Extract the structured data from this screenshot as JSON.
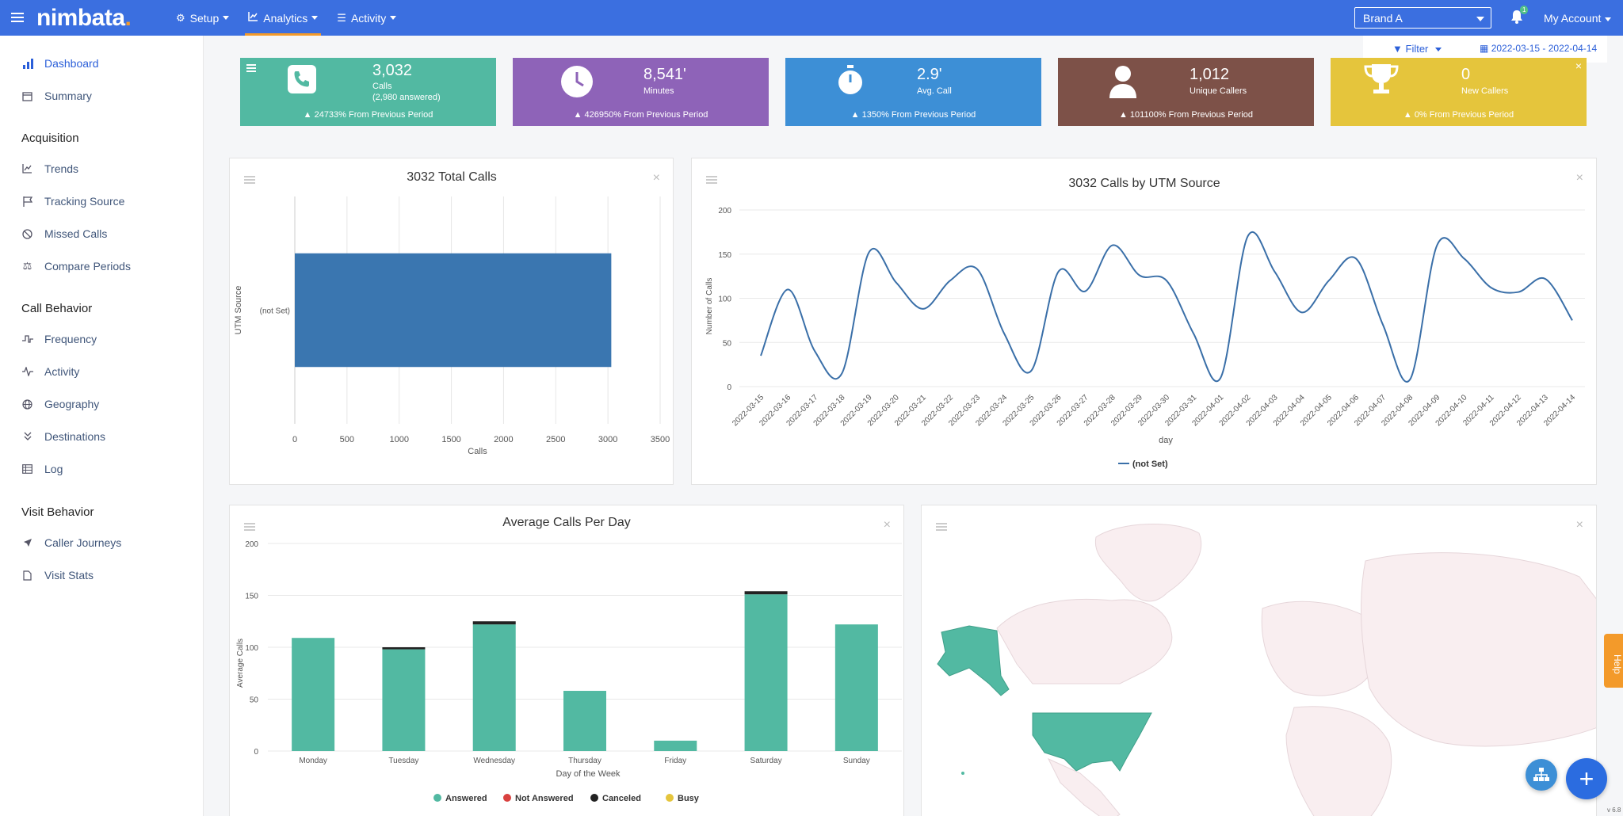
{
  "header": {
    "logo": "nimbata",
    "logo_dot": ".",
    "nav": [
      {
        "label": "Setup",
        "icon": "gear-icon"
      },
      {
        "label": "Analytics",
        "icon": "chart-icon"
      },
      {
        "label": "Activity",
        "icon": "list-icon"
      }
    ],
    "brand": "Brand A",
    "notification_count": "1",
    "account": "My Account"
  },
  "sidebar": {
    "items": [
      {
        "label": "Dashboard",
        "icon": "bar-chart-icon",
        "active": true
      },
      {
        "label": "Summary",
        "icon": "calendar-icon"
      }
    ],
    "sections": [
      {
        "title": "Acquisition",
        "items": [
          {
            "label": "Trends",
            "icon": "line-chart-icon"
          },
          {
            "label": "Tracking Source",
            "icon": "flag-icon"
          },
          {
            "label": "Missed Calls",
            "icon": "ban-icon"
          },
          {
            "label": "Compare Periods",
            "icon": "scale-icon"
          }
        ]
      },
      {
        "title": "Call Behavior",
        "items": [
          {
            "label": "Frequency",
            "icon": "pulse-icon"
          },
          {
            "label": "Activity",
            "icon": "activity-icon"
          },
          {
            "label": "Geography",
            "icon": "globe-icon"
          },
          {
            "label": "Destinations",
            "icon": "double-chevron-icon"
          },
          {
            "label": "Log",
            "icon": "table-icon"
          }
        ]
      },
      {
        "title": "Visit Behavior",
        "items": [
          {
            "label": "Caller Journeys",
            "icon": "send-icon"
          },
          {
            "label": "Visit Stats",
            "icon": "file-icon"
          }
        ]
      }
    ]
  },
  "toolbar": {
    "filter": "Filter",
    "date_range": "2022-03-15 - 2022-04-14"
  },
  "cards": [
    {
      "value": "3,032",
      "label": "Calls",
      "label2": "(2,980  answered)",
      "change": "24733% From Previous Period",
      "color": "#52b9a2",
      "icon": "phone-icon"
    },
    {
      "value": "8,541'",
      "label": "Minutes",
      "label2": "",
      "change": "426950% From Previous Period",
      "color": "#8e63b8",
      "icon": "clock-icon"
    },
    {
      "value": "2.9'",
      "label": "Avg. Call",
      "label2": "",
      "change": "1350% From Previous Period",
      "color": "#3d8fd6",
      "icon": "stopwatch-icon"
    },
    {
      "value": "1,012",
      "label": "Unique Callers",
      "label2": "",
      "change": "101100% From Previous Period",
      "color": "#7d5148",
      "icon": "user-icon"
    },
    {
      "value": "0",
      "label": "New Callers",
      "label2": "",
      "change": "0% From Previous Period",
      "color": "#e5c53c",
      "icon": "trophy-icon"
    }
  ],
  "chart_data": [
    {
      "type": "bar",
      "orientation": "horizontal",
      "title": "3032 Total Calls",
      "xlabel": "Calls",
      "ylabel": "UTM Source",
      "categories": [
        "(not Set)"
      ],
      "values": [
        3032
      ],
      "xlim": [
        0,
        3500
      ],
      "xticks": [
        "0",
        "500",
        "1000",
        "1500",
        "2000",
        "2500",
        "3000",
        "3500"
      ],
      "color": "#3a76b0"
    },
    {
      "type": "line",
      "title": "3032 Calls by UTM Source",
      "xlabel": "day",
      "ylabel": "Number of Calls",
      "ylim": [
        0,
        200
      ],
      "yticks": [
        "0",
        "50",
        "100",
        "150",
        "200"
      ],
      "legend": "bottom",
      "x": [
        "2022-03-15",
        "2022-03-16",
        "2022-03-17",
        "2022-03-18",
        "2022-03-19",
        "2022-03-20",
        "2022-03-21",
        "2022-03-22",
        "2022-03-23",
        "2022-03-24",
        "2022-03-25",
        "2022-03-26",
        "2022-03-27",
        "2022-03-28",
        "2022-03-29",
        "2022-03-30",
        "2022-03-31",
        "2022-04-01",
        "2022-04-02",
        "2022-04-03",
        "2022-04-04",
        "2022-04-05",
        "2022-04-06",
        "2022-04-07",
        "2022-04-08",
        "2022-04-09",
        "2022-04-10",
        "2022-04-11",
        "2022-04-12",
        "2022-04-13",
        "2022-04-14"
      ],
      "series": [
        {
          "name": "(not Set)",
          "color": "#3a6fa8",
          "values": [
            35,
            110,
            40,
            15,
            152,
            118,
            88,
            120,
            133,
            60,
            18,
            130,
            108,
            160,
            126,
            120,
            60,
            10,
            170,
            130,
            84,
            120,
            145,
            70,
            8,
            160,
            145,
            112,
            107,
            122,
            75
          ]
        }
      ]
    },
    {
      "type": "bar",
      "stacked": true,
      "title": "Average Calls Per Day",
      "xlabel": "Day of the Week",
      "ylabel": "Average Calls",
      "ylim": [
        0,
        200
      ],
      "yticks": [
        "0",
        "50",
        "100",
        "150",
        "200"
      ],
      "legend": "bottom",
      "categories": [
        "Monday",
        "Tuesday",
        "Wednesday",
        "Thursday",
        "Friday",
        "Saturday",
        "Sunday"
      ],
      "series": [
        {
          "name": "Answered",
          "color": "#52b9a2",
          "values": [
            109,
            98,
            122,
            58,
            10,
            151,
            122
          ]
        },
        {
          "name": "Not Answered",
          "color": "#d9413f",
          "values": [
            0,
            0,
            0,
            0,
            0,
            0,
            0
          ]
        },
        {
          "name": "Canceled",
          "color": "#222222",
          "values": [
            0,
            2,
            3,
            0,
            0,
            3,
            0
          ]
        },
        {
          "name": "Busy",
          "color": "#e5c53c",
          "values": [
            0,
            0,
            0,
            0,
            0,
            0,
            0
          ]
        }
      ]
    }
  ],
  "help": "Help",
  "version": "v 6.8"
}
